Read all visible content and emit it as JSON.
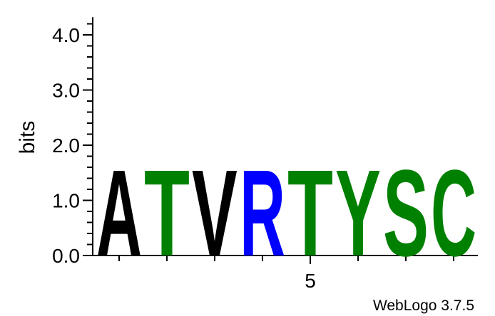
{
  "chart_data": {
    "type": "sequence-logo",
    "ylabel": "bits",
    "ylim": [
      0,
      4.32
    ],
    "y_ticks": [
      {
        "value": 0,
        "label": "0.0"
      },
      {
        "value": 1,
        "label": "1.0"
      },
      {
        "value": 2,
        "label": "2.0"
      },
      {
        "value": 3,
        "label": "3.0"
      },
      {
        "value": 4,
        "label": "4.0"
      }
    ],
    "x_positions": [
      1,
      2,
      3,
      4,
      5,
      6,
      7,
      8
    ],
    "x_tick_labels": [
      {
        "position": 5,
        "label": "5"
      }
    ],
    "positions": [
      {
        "position": 1,
        "letter": "A",
        "bits": 1.8,
        "color": "#000000"
      },
      {
        "position": 2,
        "letter": "T",
        "bits": 1.8,
        "color": "#008000"
      },
      {
        "position": 3,
        "letter": "V",
        "bits": 1.8,
        "color": "#000000"
      },
      {
        "position": 4,
        "letter": "R",
        "bits": 1.8,
        "color": "#0000ff"
      },
      {
        "position": 5,
        "letter": "T",
        "bits": 1.8,
        "color": "#008000"
      },
      {
        "position": 6,
        "letter": "Y",
        "bits": 1.8,
        "color": "#008000"
      },
      {
        "position": 7,
        "letter": "S",
        "bits": 1.8,
        "color": "#008000"
      },
      {
        "position": 8,
        "letter": "C",
        "bits": 1.8,
        "color": "#008000"
      }
    ],
    "credit": "WebLogo 3.7.5"
  }
}
